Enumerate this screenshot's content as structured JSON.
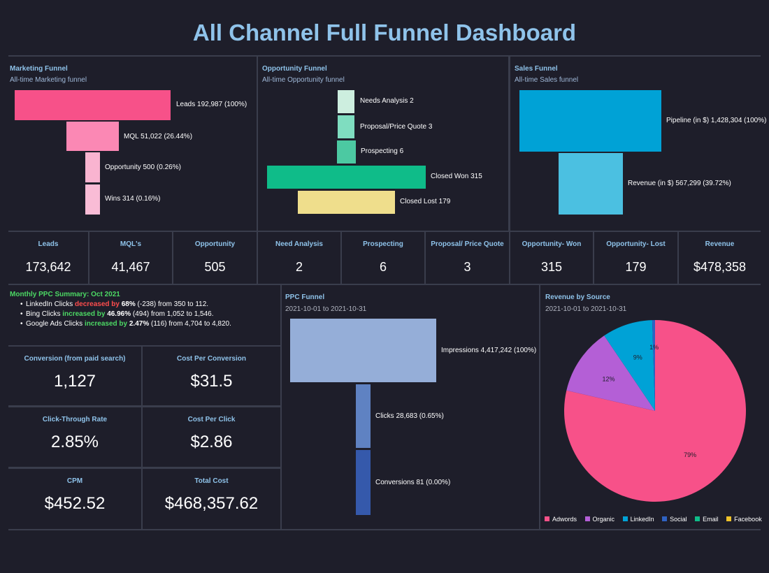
{
  "page_title": "All Channel Full Funnel Dashboard",
  "colors": {
    "accent": "#8fc3ea",
    "bg": "#1e1e2a",
    "grid": "#3a3d4c"
  },
  "marketing": {
    "title": "Marketing Funnel",
    "subtitle": "All-time Marketing funnel",
    "stages": [
      {
        "label": "Leads 192,987 (100%)",
        "value": 192987,
        "color": "#f75189"
      },
      {
        "label": "MQL 51,022 (26.44%)",
        "value": 51022,
        "color": "#fb88b4"
      },
      {
        "label": "Opportunity 500 (0.26%)",
        "value": 500,
        "color": "#f9b4d0"
      },
      {
        "label": "Wins 314 (0.16%)",
        "value": 314,
        "color": "#f9bcd6"
      }
    ]
  },
  "opportunity": {
    "title": "Opportunity Funnel",
    "subtitle": "All-time Opportunity funnel",
    "stages": [
      {
        "label": "Needs Analysis 2",
        "value": 2,
        "color": "#cdeedf"
      },
      {
        "label": "Proposal/Price Quote 3",
        "value": 3,
        "color": "#7fddc0"
      },
      {
        "label": "Prospecting 6",
        "value": 6,
        "color": "#4cc9a2"
      },
      {
        "label": "Closed Won 315",
        "value": 315,
        "color": "#0fbc89"
      },
      {
        "label": "Closed Lost 179",
        "value": 179,
        "color": "#efde8c"
      }
    ]
  },
  "sales": {
    "title": "Sales Funnel",
    "subtitle": "All-time Sales funnel",
    "stages": [
      {
        "label": "Pipeline (in $) 1,428,304 (100%)",
        "value": 1428304,
        "color": "#00a2d6"
      },
      {
        "label": "Revenue (in $) 567,299 (39.72%)",
        "value": 567299,
        "color": "#4bc0e1"
      }
    ]
  },
  "kpis": [
    {
      "label": "Leads",
      "value": "173,642"
    },
    {
      "label": "MQL's",
      "value": "41,467"
    },
    {
      "label": "Opportunity",
      "value": "505"
    },
    {
      "label": "Need Analysis",
      "value": "2"
    },
    {
      "label": "Prospecting",
      "value": "6"
    },
    {
      "label": "Proposal/ Price Quote",
      "value": "3"
    },
    {
      "label": "Opportunity- Won",
      "value": "315"
    },
    {
      "label": "Opportunity- Lost",
      "value": "179"
    },
    {
      "label": "Revenue",
      "value": "$478,358"
    }
  ],
  "ppc_summary": {
    "title": "Monthly PPC Summary:  Oct 2021",
    "lines": [
      {
        "pre": "LinkedIn Clicks ",
        "trend": "decreased by",
        "pct": "68%",
        "post": " (-238) from 350 to 112.",
        "trend_type": "down"
      },
      {
        "pre": "Bing Clicks ",
        "trend": "increased by",
        "pct": "46.96%",
        "post": " (494) from 1,052 to 1,546.",
        "trend_type": "up"
      },
      {
        "pre": "Google Ads Clicks ",
        "trend": "increased by",
        "pct": "2.47%",
        "post": " (116) from 4,704 to 4,820.",
        "trend_type": "up"
      }
    ]
  },
  "metrics": [
    {
      "label": "Conversion (from paid search)",
      "value": "1,127"
    },
    {
      "label": "Cost Per Conversion",
      "value": "$31.5"
    },
    {
      "label": "Click-Through Rate",
      "value": "2.85%"
    },
    {
      "label": "Cost Per Click",
      "value": "$2.86"
    },
    {
      "label": "CPM",
      "value": "$452.52"
    },
    {
      "label": "Total Cost",
      "value": "$468,357.62"
    }
  ],
  "ppc_funnel": {
    "title": "PPC Funnel",
    "date_range": "2021-10-01 to 2021-10-31",
    "stages": [
      {
        "label": "Impressions 4,417,242 (100%)",
        "value": 4417242,
        "color": "#95aed8"
      },
      {
        "label": "Clicks 28,683 (0.65%)",
        "value": 28683,
        "color": "#5f82c2"
      },
      {
        "label": "Conversions 81 (0.00%)",
        "value": 81,
        "color": "#3559ab"
      }
    ]
  },
  "revenue_source": {
    "title": "Revenue by Source",
    "date_range": "2021-10-01 to 2021-10-31"
  },
  "chart_data": [
    {
      "type": "funnel",
      "title": "Marketing Funnel",
      "categories": [
        "Leads",
        "MQL",
        "Opportunity",
        "Wins"
      ],
      "values": [
        192987,
        51022,
        500,
        314
      ]
    },
    {
      "type": "funnel",
      "title": "Opportunity Funnel",
      "categories": [
        "Needs Analysis",
        "Proposal/Price Quote",
        "Prospecting",
        "Closed Won",
        "Closed Lost"
      ],
      "values": [
        2,
        3,
        6,
        315,
        179
      ]
    },
    {
      "type": "funnel",
      "title": "Sales Funnel",
      "categories": [
        "Pipeline (in $)",
        "Revenue (in $)"
      ],
      "values": [
        1428304,
        567299
      ]
    },
    {
      "type": "funnel",
      "title": "PPC Funnel",
      "categories": [
        "Impressions",
        "Clicks",
        "Conversions"
      ],
      "values": [
        4417242,
        28683,
        81
      ]
    },
    {
      "type": "pie",
      "title": "Revenue by Source",
      "slices": [
        {
          "name": "Adwords",
          "value": 79,
          "label": "79%",
          "color": "#f75189"
        },
        {
          "name": "Organic",
          "value": 12,
          "label": "12%",
          "color": "#b45fd6"
        },
        {
          "name": "LinkedIn",
          "value": 9,
          "label": "9%",
          "color": "#00a2d6"
        },
        {
          "name": "Social",
          "value": 0.5,
          "label": "1%",
          "color": "#2f62c2"
        },
        {
          "name": "Email",
          "value": 0,
          "label": "",
          "color": "#0fbc89"
        },
        {
          "name": "Facebook",
          "value": 0,
          "label": "",
          "color": "#efc22a"
        }
      ],
      "legend": [
        "Adwords",
        "Organic",
        "LinkedIn",
        "Social",
        "Email",
        "Facebook"
      ]
    }
  ]
}
